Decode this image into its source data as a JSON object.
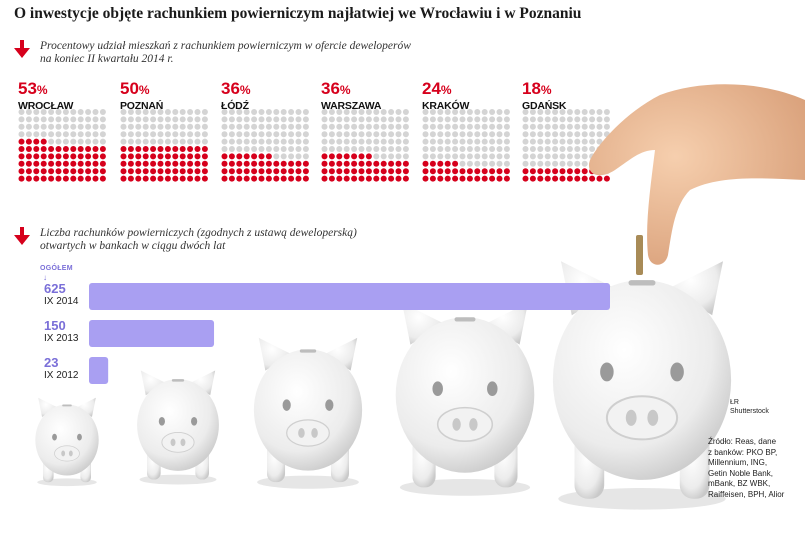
{
  "title": "O inwestycje objęte rachunkiem powierniczym najłatwiej we Wrocławiu i w Poznaniu",
  "section1": {
    "subtitle_line1": "Procentowy udział mieszkań z rachunkiem powierniczym w ofercie deweloperów",
    "subtitle_line2": "na koniec II kwartału 2014 r."
  },
  "section2": {
    "subtitle_line1": "Liczba rachunków powierniczych (zgodnych z ustawą deweloperską)",
    "subtitle_line2": "otwartych w bankach w ciągu dwóch lat",
    "total_label": "OGÓŁEM"
  },
  "colors": {
    "red": "#d6001c",
    "grey_dot": "#d4d4d4",
    "purple": "#a99ff2",
    "purple_text": "#7a6fd8"
  },
  "chart_data": [
    {
      "type": "bar",
      "title": "Procentowy udział mieszkań z rachunkiem powierniczym w ofercie deweloperów na koniec II kwartału 2014 r.",
      "categories": [
        "WROCŁAW",
        "POZNAŃ",
        "ŁÓDŹ",
        "WARSZAWA",
        "KRAKÓW",
        "GDAŃSK"
      ],
      "values": [
        53,
        50,
        36,
        36,
        24,
        18
      ],
      "value_labels": [
        "53",
        "50",
        "36",
        "36",
        "24",
        "18"
      ],
      "unit": "%",
      "ylim": [
        0,
        100
      ]
    },
    {
      "type": "bar",
      "orientation": "horizontal",
      "title": "Liczba rachunków powierniczych (zgodnych z ustawą deweloperską) otwartych w bankach w ciągu dwóch lat",
      "categories": [
        "IX 2014",
        "IX 2013",
        "IX 2012"
      ],
      "values": [
        625,
        150,
        23
      ],
      "value_labels": [
        "625",
        "150",
        "23"
      ]
    }
  ],
  "credit": {
    "line1": "ŁR",
    "line2": "Shutterstock"
  },
  "source_lines": [
    "Źródło: Reas, dane",
    "z banków: PKO BP,",
    "Millennium, ING,",
    "Getin Noble Bank,",
    "mBank, BZ WBK,",
    "Raiffeisen, BPH, Alior"
  ]
}
